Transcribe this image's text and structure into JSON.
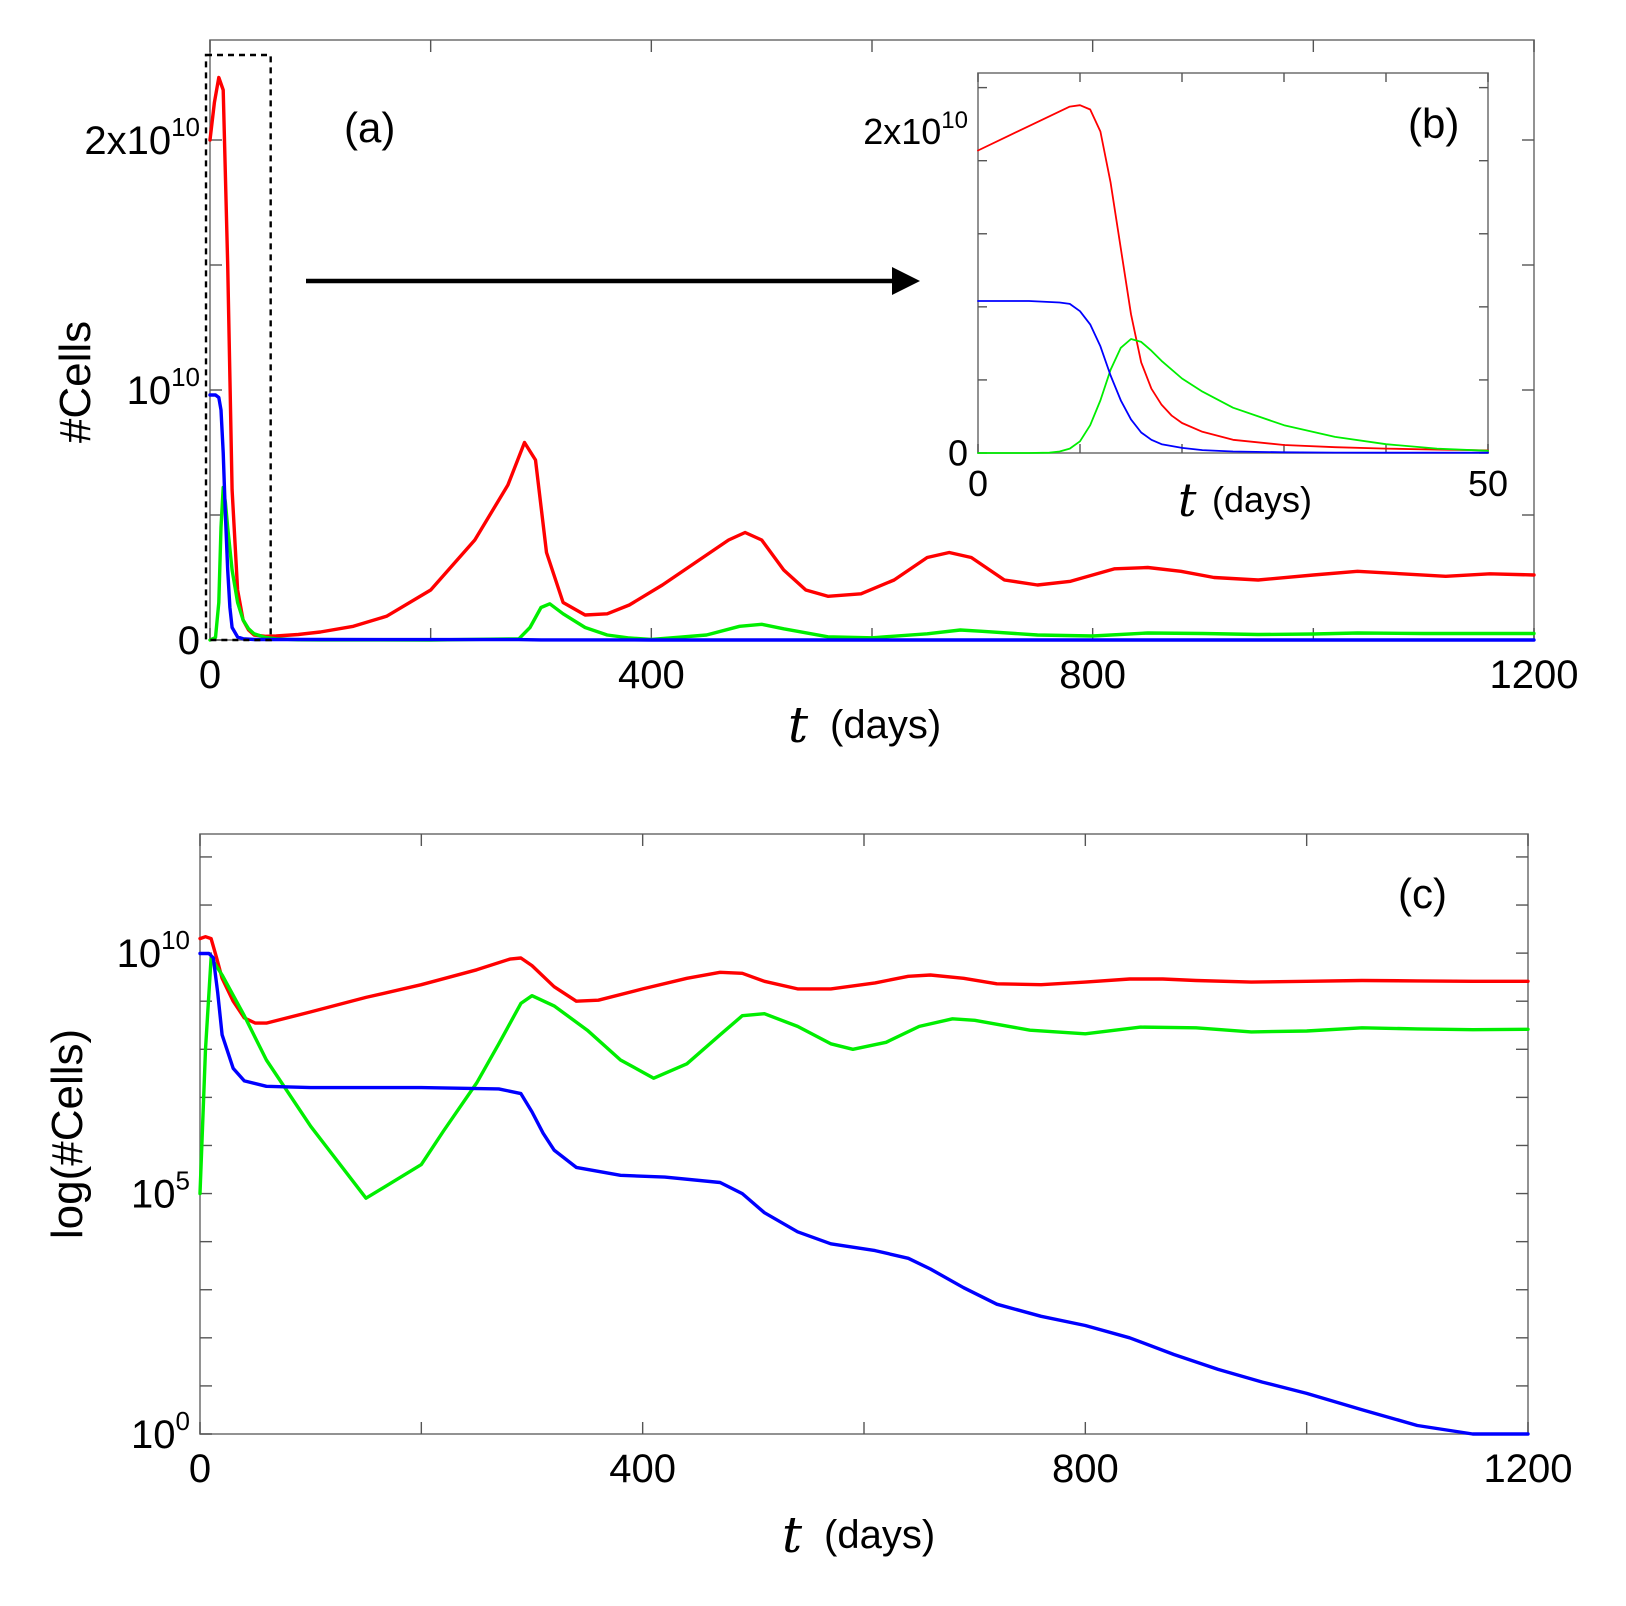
{
  "colors": {
    "red_series": "#ff0000",
    "green_series": "#00ee00",
    "blue_series": "#0000ff",
    "frame": "#777777",
    "arrow": "#000000"
  },
  "chart_data": [
    {
      "panel": "(a)",
      "type": "line",
      "ylabel": "#Cells",
      "xlabel_var": "t",
      "xlabel_unit": "(days)",
      "xlim": [
        0,
        1200
      ],
      "ylim": [
        0,
        24000000000.0
      ],
      "xticks": [
        {
          "value": 0,
          "label": "0"
        },
        {
          "value": 400,
          "label": "400"
        },
        {
          "value": 800,
          "label": "800"
        },
        {
          "value": 1200,
          "label": "1200"
        }
      ],
      "yticks": [
        {
          "value": 0,
          "label_base": "0",
          "label_exp": ""
        },
        {
          "value": 10000000000.0,
          "label_base": "10",
          "label_exp": "10"
        },
        {
          "value": 20000000000.0,
          "label_base": "2x10",
          "label_exp": "10"
        }
      ],
      "zoom_box": {
        "x": [
          0,
          55
        ],
        "y": [
          0,
          23400000000.0
        ]
      },
      "series": [
        {
          "color": "red",
          "x": [
            0,
            4,
            8,
            12,
            16,
            20,
            25,
            30,
            35,
            40,
            50,
            60,
            80,
            100,
            130,
            160,
            200,
            240,
            270,
            285,
            295,
            305,
            320,
            340,
            360,
            380,
            410,
            440,
            470,
            485,
            500,
            520,
            540,
            560,
            590,
            620,
            650,
            670,
            690,
            720,
            750,
            780,
            820,
            850,
            880,
            910,
            950,
            1000,
            1040,
            1080,
            1120,
            1160,
            1200
          ],
          "y": [
            20000000000.0,
            21500000000.0,
            22500000000.0,
            22000000000.0,
            15000000000.0,
            6000000000.0,
            2000000000.0,
            800000000.0,
            400000000.0,
            200000000.0,
            150000000.0,
            160000000.0,
            220000000.0,
            320000000.0,
            550000000.0,
            950000000.0,
            2000000000.0,
            4000000000.0,
            6200000000.0,
            7900000000.0,
            7200000000.0,
            3500000000.0,
            1500000000.0,
            1000000000.0,
            1050000000.0,
            1400000000.0,
            2200000000.0,
            3100000000.0,
            4000000000.0,
            4300000000.0,
            4000000000.0,
            2800000000.0,
            2000000000.0,
            1750000000.0,
            1850000000.0,
            2400000000.0,
            3300000000.0,
            3500000000.0,
            3300000000.0,
            2400000000.0,
            2200000000.0,
            2350000000.0,
            2850000000.0,
            2900000000.0,
            2750000000.0,
            2500000000.0,
            2400000000.0,
            2600000000.0,
            2750000000.0,
            2650000000.0,
            2550000000.0,
            2650000000.0,
            2600000000.0
          ]
        },
        {
          "color": "green",
          "x": [
            0,
            5,
            8,
            10,
            12,
            14,
            16,
            20,
            25,
            30,
            35,
            40,
            50,
            60,
            80,
            100,
            200,
            280,
            290,
            300,
            308,
            320,
            340,
            360,
            380,
            400,
            450,
            480,
            500,
            520,
            560,
            600,
            650,
            680,
            700,
            750,
            800,
            850,
            900,
            950,
            1000,
            1040,
            1100,
            1150,
            1200
          ],
          "y": [
            0,
            100000000.0,
            1500000000.0,
            4500000000.0,
            6100000000.0,
            5500000000.0,
            4500000000.0,
            2800000000.0,
            1500000000.0,
            800000000.0,
            450000000.0,
            250000000.0,
            100000000.0,
            50000000.0,
            10000000.0,
            3000000.0,
            100000.0,
            50000000.0,
            500000000.0,
            1300000000.0,
            1450000000.0,
            1050000000.0,
            500000000.0,
            200000000.0,
            80000000.0,
            20000000.0,
            200000000.0,
            550000000.0,
            630000000.0,
            450000000.0,
            130000000.0,
            90000000.0,
            250000000.0,
            400000000.0,
            350000000.0,
            200000000.0,
            160000000.0,
            280000000.0,
            260000000.0,
            220000000.0,
            240000000.0,
            280000000.0,
            260000000.0,
            260000000.0,
            260000000.0
          ]
        },
        {
          "color": "blue",
          "x": [
            0,
            5,
            8,
            10,
            12,
            14,
            16,
            18,
            20,
            25,
            30,
            40,
            60,
            100,
            280,
            300,
            400,
            600,
            1200
          ],
          "y": [
            9800000000.0,
            9800000000.0,
            9700000000.0,
            9200000000.0,
            7500000000.0,
            5000000000.0,
            2800000000.0,
            1300000000.0,
            500000000.0,
            120000000.0,
            50000000.0,
            20000000.0,
            20000000.0,
            20000000.0,
            15000000.0,
            3000000.0,
            1500000.0,
            100000.0,
            10
          ]
        }
      ]
    },
    {
      "panel": "(b)",
      "type": "line",
      "xlabel_var": "t",
      "xlabel_unit": "(days)",
      "xlim": [
        0,
        50
      ],
      "ylim": [
        0,
        26000000000.0
      ],
      "xticks": [
        {
          "value": 0,
          "label": "0"
        },
        {
          "value": 50,
          "label": "50"
        }
      ],
      "yticks": [
        {
          "value": 0,
          "label_base": "0",
          "label_exp": ""
        },
        {
          "value": 22000000000.0,
          "label_base": "2x10",
          "label_exp": "10"
        }
      ],
      "series": [
        {
          "color": "red",
          "x": [
            0,
            3,
            6,
            9,
            10,
            11,
            12,
            13,
            14,
            15,
            16,
            17,
            18,
            19,
            20,
            22,
            25,
            30,
            35,
            40,
            45,
            50
          ],
          "y": [
            20700000000.0,
            21700000000.0,
            22700000000.0,
            23700000000.0,
            23800000000.0,
            23500000000.0,
            22000000000.0,
            18500000000.0,
            14000000000.0,
            9500000000.0,
            6200000000.0,
            4400000000.0,
            3300000000.0,
            2550000000.0,
            2050000000.0,
            1450000000.0,
            900000000.0,
            550000000.0,
            400000000.0,
            300000000.0,
            230000000.0,
            180000000.0
          ]
        },
        {
          "color": "green",
          "x": [
            0,
            5,
            7,
            8,
            9,
            10,
            11,
            12,
            13,
            14,
            15,
            16,
            17,
            18,
            20,
            22,
            25,
            30,
            35,
            40,
            45,
            50
          ],
          "y": [
            0,
            0,
            20000000.0,
            100000000.0,
            300000000.0,
            800000000.0,
            1900000000.0,
            3600000000.0,
            5700000000.0,
            7200000000.0,
            7800000000.0,
            7600000000.0,
            7000000000.0,
            6300000000.0,
            5100000000.0,
            4200000000.0,
            3100000000.0,
            1900000000.0,
            1100000000.0,
            600000000.0,
            300000000.0,
            150000000.0
          ]
        },
        {
          "color": "blue",
          "x": [
            0,
            5,
            8,
            9,
            10,
            11,
            12,
            13,
            14,
            15,
            16,
            17,
            18,
            20,
            22,
            25,
            30,
            35,
            40,
            45,
            50
          ],
          "y": [
            10400000000.0,
            10400000000.0,
            10300000000.0,
            10200000000.0,
            9700000000.0,
            8800000000.0,
            7300000000.0,
            5300000000.0,
            3600000000.0,
            2300000000.0,
            1400000000.0,
            900000000.0,
            600000000.0,
            350000000.0,
            200000000.0,
            100000000.0,
            50000000.0,
            30000000.0,
            20000000.0,
            20000000.0,
            20000000.0
          ]
        }
      ]
    },
    {
      "panel": "(c)",
      "type": "line",
      "yscale": "log",
      "ylabel": "log(#Cells)",
      "xlabel_var": "t",
      "xlabel_unit": "(days)",
      "xlim": [
        0,
        1200
      ],
      "ylim": [
        1,
        3000000000000.0
      ],
      "xticks": [
        {
          "value": 0,
          "label": "0"
        },
        {
          "value": 400,
          "label": "400"
        },
        {
          "value": 800,
          "label": "800"
        },
        {
          "value": 1200,
          "label": "1200"
        }
      ],
      "yticks": [
        {
          "value": 1,
          "label_base": "10",
          "label_exp": "0"
        },
        {
          "value": 100000.0,
          "label_base": "10",
          "label_exp": "5"
        },
        {
          "value": 10000000000.0,
          "label_base": "10",
          "label_exp": "10"
        }
      ],
      "series": [
        {
          "color": "red",
          "x": [
            0,
            5,
            10,
            15,
            20,
            30,
            40,
            50,
            60,
            100,
            150,
            200,
            250,
            280,
            290,
            300,
            320,
            340,
            360,
            400,
            440,
            470,
            490,
            510,
            540,
            570,
            610,
            640,
            660,
            690,
            720,
            760,
            800,
            840,
            870,
            900,
            950,
            1000,
            1050,
            1100,
            1150,
            1200
          ],
          "y": [
            20000000000.0,
            22000000000.0,
            20000000000.0,
            8000000000.0,
            3000000000.0,
            1000000000.0,
            450000000.0,
            350000000.0,
            350000000.0,
            600000000.0,
            1200000000.0,
            2200000000.0,
            4500000000.0,
            7500000000.0,
            7900000000.0,
            5500000000.0,
            2000000000.0,
            1000000000.0,
            1050000000.0,
            1800000000.0,
            3000000000.0,
            4000000000.0,
            3800000000.0,
            2600000000.0,
            1800000000.0,
            1800000000.0,
            2400000000.0,
            3300000000.0,
            3500000000.0,
            3000000000.0,
            2300000000.0,
            2200000000.0,
            2500000000.0,
            2900000000.0,
            2900000000.0,
            2700000000.0,
            2500000000.0,
            2600000000.0,
            2700000000.0,
            2650000000.0,
            2600000000.0,
            2600000000.0
          ]
        },
        {
          "color": "green",
          "x": [
            0,
            5,
            10,
            20,
            40,
            60,
            100,
            150,
            200,
            220,
            250,
            270,
            290,
            300,
            320,
            350,
            380,
            410,
            440,
            470,
            490,
            510,
            540,
            570,
            590,
            620,
            650,
            680,
            700,
            750,
            800,
            850,
            900,
            950,
            1000,
            1050,
            1100,
            1150,
            1200
          ],
          "y": [
            100000.0,
            100000000.0,
            8000000000.0,
            3500000000.0,
            500000000.0,
            60000000.0,
            2500000.0,
            80000.0,
            400000.0,
            2000000.0,
            20000000.0,
            130000000.0,
            900000000.0,
            1300000000.0,
            800000000.0,
            250000000.0,
            60000000.0,
            25000000.0,
            50000000.0,
            200000000.0,
            500000000.0,
            550000000.0,
            300000000.0,
            130000000.0,
            100000000.0,
            140000000.0,
            300000000.0,
            430000000.0,
            400000000.0,
            250000000.0,
            210000000.0,
            290000000.0,
            280000000.0,
            230000000.0,
            240000000.0,
            280000000.0,
            265000000.0,
            255000000.0,
            260000000.0
          ]
        },
        {
          "color": "blue",
          "x": [
            0,
            8,
            12,
            16,
            20,
            30,
            40,
            60,
            100,
            200,
            270,
            290,
            300,
            310,
            320,
            340,
            380,
            420,
            470,
            490,
            510,
            540,
            570,
            610,
            640,
            660,
            690,
            720,
            760,
            800,
            840,
            880,
            920,
            960,
            1000,
            1050,
            1100,
            1150,
            1200
          ],
          "y": [
            9800000000.0,
            9800000000.0,
            8000000000.0,
            1500000000.0,
            200000000.0,
            40000000.0,
            22000000.0,
            17000000.0,
            16000000.0,
            16000000.0,
            15000000.0,
            12000000.0,
            5000000.0,
            1800000.0,
            800000.0,
            350000.0,
            240000.0,
            220000.0,
            170000.0,
            100000.0,
            40000.0,
            16000.0,
            9000.0,
            6500.0,
            4500.0,
            2700.0,
            1100.0,
            500,
            280,
            180,
            100,
            45,
            22,
            12,
            7,
            3.2,
            1.5,
            0.7,
            0.3
          ]
        }
      ]
    }
  ]
}
